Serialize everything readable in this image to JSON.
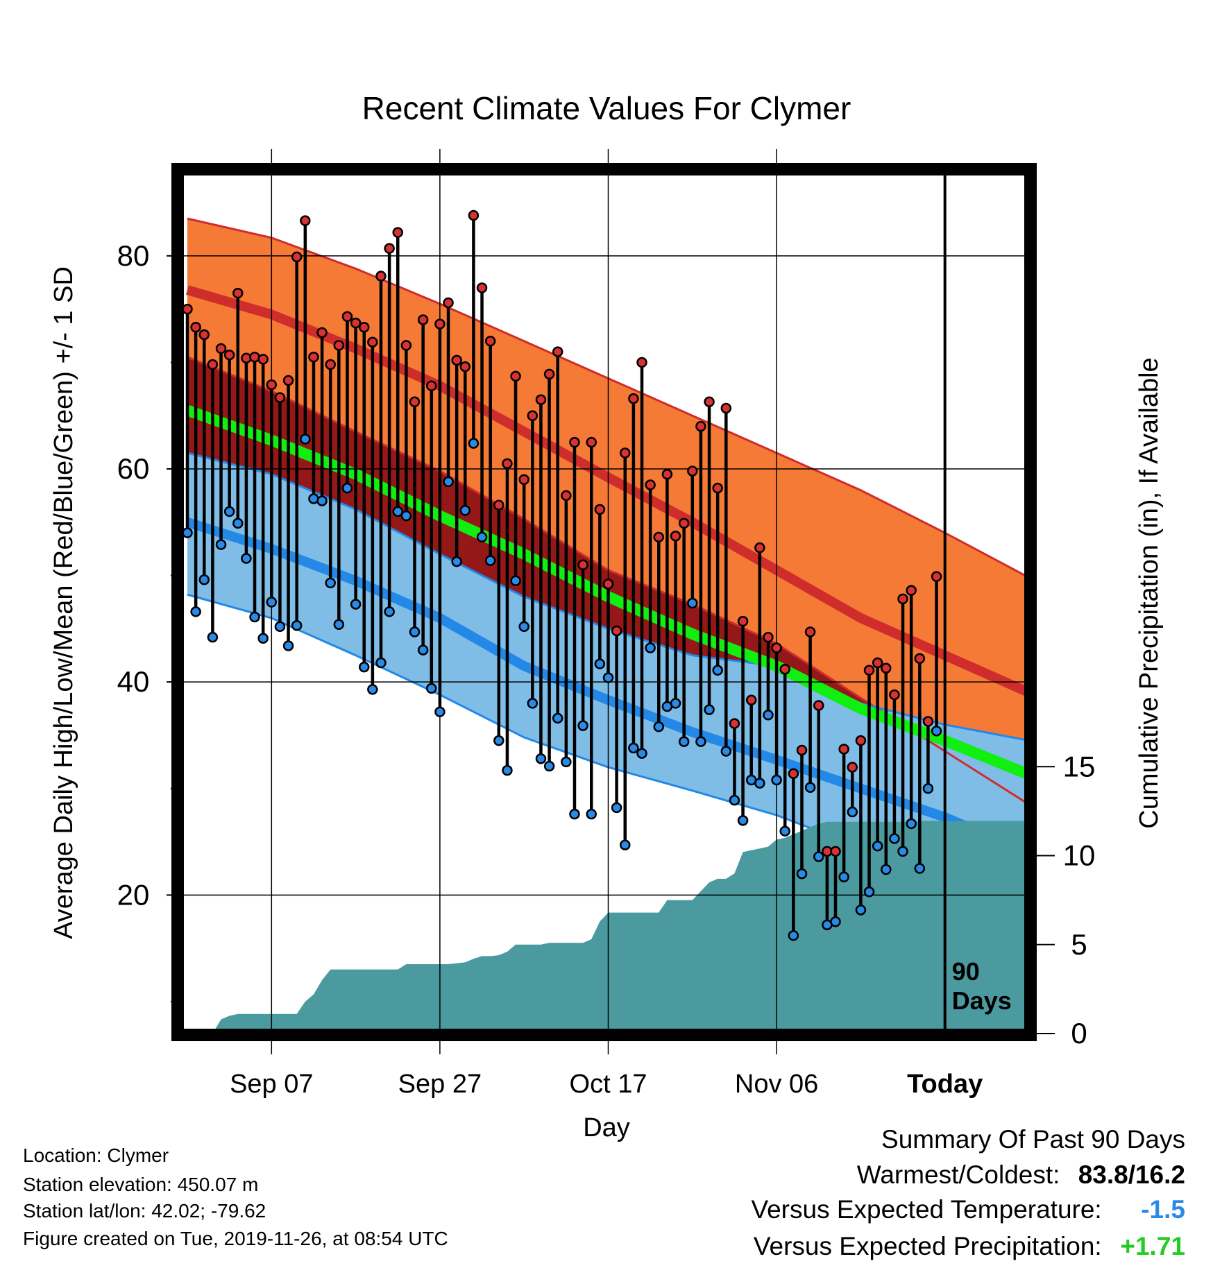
{
  "colors": {
    "high_band": "#f47a35",
    "high_mean": "#cf2c2c",
    "low_band": "#7fbde6",
    "low_mean": "#2388e6",
    "mean_line": "#11ee11",
    "below_high": "#941818",
    "precip": "#4a9aa0",
    "high_dot": "#d83232",
    "low_dot": "#2a8ae8",
    "positive_text": "#22cc22",
    "negative_text": "#2a8ae8"
  },
  "chart_data": {
    "type": "line",
    "title": "Recent Climate Values For Clymer",
    "xlabel": "Day",
    "ylabel_left": "Average Daily High/Low/Mean (Red/Blue/Green) +/- 1 SD",
    "ylabel_right": "Cumulative Precipitation (in), If Available",
    "x_ticks": [
      "Sep 07",
      "Sep 27",
      "Oct 17",
      "Nov 06",
      "Today"
    ],
    "x_tick_day_index": [
      10,
      30,
      50,
      70,
      90
    ],
    "xlim_day_index": [
      0,
      100
    ],
    "ylim_left": [
      7,
      88
    ],
    "ylim_right": [
      0,
      48.5
    ],
    "y_ticks_left": [
      20,
      40,
      60,
      80
    ],
    "y_ticks_right": [
      0,
      5,
      10,
      15
    ],
    "today_marker_label": "90\nDays",
    "normals_day_index": [
      0,
      10,
      20,
      30,
      40,
      50,
      60,
      70,
      80,
      90,
      100
    ],
    "normal_high_mean": [
      76.8,
      74.5,
      71.3,
      67.8,
      63.5,
      59.2,
      55.0,
      50.5,
      46.0,
      42.5,
      39.0
    ],
    "normal_high_upper": [
      83.5,
      81.7,
      78.8,
      75.5,
      72.0,
      68.5,
      65.0,
      61.5,
      58.0,
      54.0,
      49.8
    ],
    "normal_high_lower": [
      70.5,
      67.3,
      63.5,
      59.8,
      55.3,
      50.5,
      47.3,
      43.6,
      38.5,
      33.5,
      28.5
    ],
    "normal_mean": [
      65.5,
      62.7,
      59.5,
      55.6,
      52.0,
      48.0,
      44.5,
      41.5,
      37.5,
      34.5,
      31.3
    ],
    "normal_low_mean": [
      55.0,
      52.5,
      49.5,
      46.0,
      41.5,
      38.3,
      35.3,
      32.7,
      30.0,
      27.3,
      24.0
    ],
    "normal_low_upper": [
      61.5,
      59.5,
      56.2,
      52.0,
      48.0,
      45.0,
      42.5,
      41.5,
      38.0,
      36.0,
      34.5
    ],
    "normal_low_lower": [
      48.2,
      46.0,
      42.5,
      38.8,
      34.8,
      32.0,
      29.8,
      27.5,
      24.5,
      22.0,
      19.0
    ],
    "daily_day_index": [
      0,
      1,
      2,
      3,
      4,
      5,
      6,
      7,
      8,
      9,
      10,
      11,
      12,
      13,
      14,
      15,
      16,
      17,
      18,
      19,
      20,
      21,
      22,
      23,
      24,
      25,
      26,
      27,
      28,
      29,
      30,
      31,
      32,
      33,
      34,
      35,
      36,
      37,
      38,
      39,
      40,
      41,
      42,
      43,
      44,
      45,
      46,
      47,
      48,
      49,
      50,
      51,
      52,
      53,
      54,
      55,
      56,
      57,
      58,
      59,
      60,
      61,
      62,
      63,
      64,
      65,
      66,
      67,
      68,
      69,
      70,
      71,
      72,
      73,
      74,
      75,
      76,
      77,
      78,
      79,
      80,
      81,
      82,
      83,
      84,
      85,
      86,
      87,
      88,
      89
    ],
    "daily_high": [
      75.0,
      73.3,
      72.6,
      69.8,
      71.3,
      70.7,
      76.5,
      70.4,
      70.5,
      70.3,
      67.9,
      66.7,
      68.3,
      79.9,
      83.3,
      70.5,
      72.8,
      69.8,
      71.6,
      74.3,
      73.7,
      73.3,
      71.9,
      78.1,
      80.7,
      82.2,
      71.6,
      66.3,
      74.0,
      67.8,
      73.6,
      75.6,
      70.2,
      69.6,
      83.8,
      77.0,
      72.0,
      56.6,
      60.5,
      68.7,
      59.0,
      65.0,
      66.5,
      68.9,
      71.0,
      57.5,
      62.5,
      51.0,
      62.5,
      56.2,
      49.2,
      44.8,
      61.5,
      66.6,
      70.0,
      58.5,
      53.6,
      59.5,
      53.7,
      54.9,
      59.8,
      64.0,
      66.3,
      58.2,
      65.7,
      36.1,
      45.7,
      38.3,
      52.6,
      44.2,
      43.2,
      41.2,
      31.4,
      33.6,
      44.7,
      37.8,
      24.1,
      24.1,
      33.7,
      32.0,
      34.5,
      41.1,
      41.8,
      41.3,
      38.8,
      47.8,
      48.6,
      42.2,
      36.3,
      49.9
    ],
    "daily_low": [
      54.0,
      46.6,
      49.6,
      44.2,
      52.9,
      56.0,
      54.9,
      51.6,
      46.1,
      44.1,
      47.5,
      45.2,
      43.4,
      45.3,
      62.8,
      57.2,
      57.0,
      49.3,
      45.4,
      58.2,
      47.3,
      41.4,
      39.3,
      41.8,
      46.6,
      56.0,
      55.6,
      44.7,
      43.0,
      39.4,
      37.2,
      58.8,
      51.3,
      56.1,
      62.4,
      53.6,
      51.4,
      34.5,
      31.7,
      49.5,
      45.2,
      38.0,
      32.8,
      32.1,
      36.6,
      32.5,
      27.6,
      35.9,
      27.6,
      41.7,
      40.4,
      28.2,
      24.7,
      33.8,
      33.3,
      43.2,
      35.8,
      37.7,
      38.0,
      34.4,
      47.4,
      34.4,
      37.4,
      41.1,
      33.5,
      28.9,
      27.0,
      30.8,
      30.5,
      36.9,
      30.8,
      26.0,
      16.2,
      22.0,
      30.1,
      23.6,
      17.2,
      17.5,
      21.7,
      27.8,
      18.6,
      20.3,
      24.6,
      22.4,
      25.3,
      24.1,
      26.7,
      22.5,
      30.0,
      35.4
    ],
    "precip_day_index": [
      0,
      3,
      4,
      5,
      6,
      10,
      11,
      12,
      13,
      14,
      15,
      16,
      17,
      18,
      19,
      20,
      21,
      22,
      23,
      24,
      25,
      26,
      27,
      28,
      29,
      30,
      31,
      32,
      33,
      34,
      35,
      36,
      37,
      38,
      39,
      40,
      41,
      42,
      43,
      44,
      45,
      46,
      47,
      48,
      49,
      50,
      51,
      52,
      53,
      54,
      55,
      56,
      57,
      58,
      59,
      60,
      61,
      62,
      63,
      64,
      65,
      66,
      67,
      68,
      69,
      70,
      71,
      72,
      73,
      74,
      75,
      76,
      77,
      78,
      79,
      80,
      81,
      82,
      83,
      84,
      85,
      86,
      87,
      88,
      89,
      90,
      91,
      92,
      93,
      94,
      95,
      96,
      97,
      98,
      99,
      100
    ],
    "precip_cumulative": [
      0,
      0,
      0.8,
      1.0,
      1.1,
      1.1,
      1.1,
      1.1,
      1.1,
      1.8,
      2.2,
      3.0,
      3.6,
      3.6,
      3.6,
      3.6,
      3.6,
      3.6,
      3.6,
      3.6,
      3.6,
      3.9,
      3.9,
      3.9,
      3.9,
      3.9,
      3.9,
      3.95,
      4.0,
      4.2,
      4.35,
      4.35,
      4.4,
      4.6,
      5.0,
      5.0,
      5.0,
      5.0,
      5.1,
      5.1,
      5.1,
      5.1,
      5.1,
      5.3,
      6.3,
      6.8,
      6.8,
      6.8,
      6.8,
      6.8,
      6.8,
      6.8,
      7.5,
      7.5,
      7.5,
      7.5,
      8.0,
      8.5,
      8.7,
      8.7,
      9.0,
      10.2,
      10.3,
      10.4,
      10.5,
      10.9,
      11.0,
      11.2,
      11.4,
      11.6,
      11.8,
      11.9,
      11.9,
      11.9,
      11.9,
      11.9,
      11.9,
      11.9,
      11.9,
      11.9,
      11.9,
      11.9,
      11.95,
      11.95,
      11.95,
      11.95,
      11.95,
      11.95,
      11.95,
      11.95,
      11.95,
      11.95,
      11.95,
      11.95,
      11.95,
      11.95
    ]
  },
  "info": {
    "location": "Location: Clymer",
    "elevation": "Station elevation: 450.07 m",
    "latlon": "Station lat/lon: 42.02; -79.62",
    "created": "Figure created on Tue, 2019-11-26, at 08:54 UTC"
  },
  "summary": {
    "heading": "Summary Of Past 90 Days",
    "warm_cold_label": "Warmest/Coldest:",
    "warm_cold_value": "83.8/16.2",
    "temp_label": "Versus Expected Temperature:",
    "temp_value": "-1.5",
    "precip_label": "Versus Expected Precipitation:",
    "precip_value": "+1.71"
  }
}
